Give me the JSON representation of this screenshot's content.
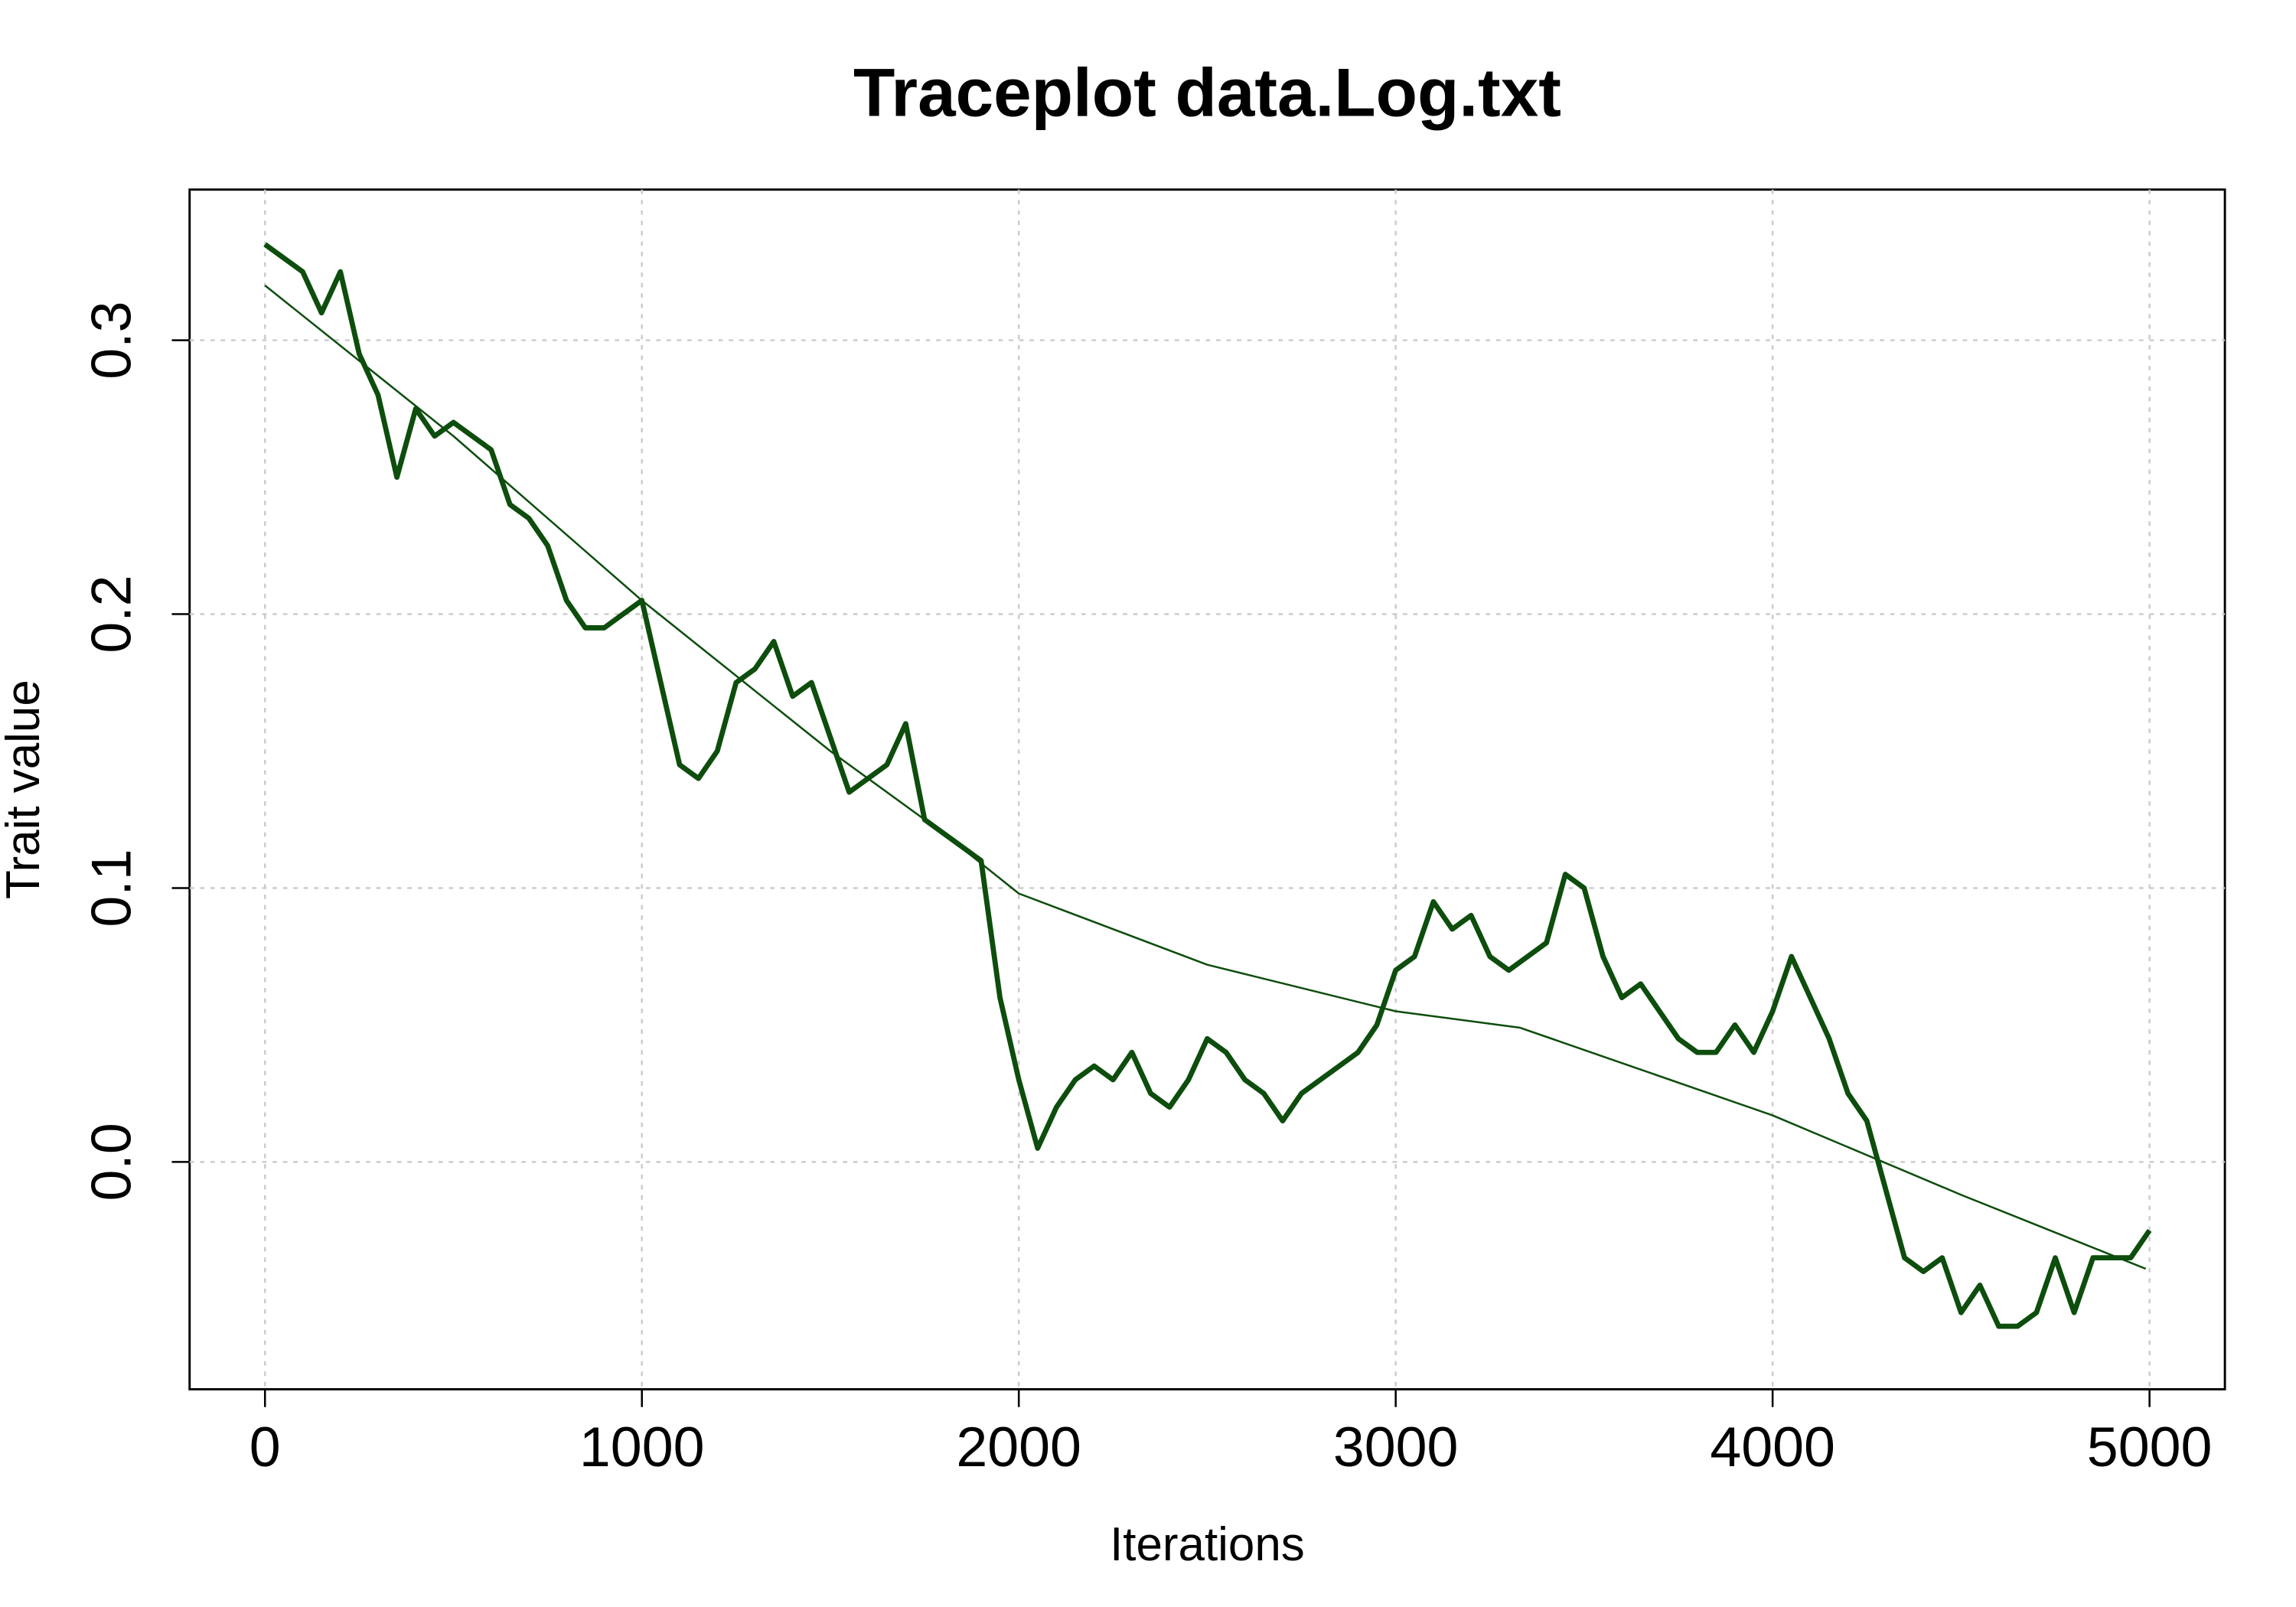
{
  "chart_data": {
    "type": "line",
    "title": "Traceplot data.Log.txt",
    "xlabel": "Iterations",
    "ylabel": "Trait value",
    "xlim": [
      -200,
      5200
    ],
    "ylim": [
      -0.083,
      0.355
    ],
    "xticks": [
      0,
      1000,
      2000,
      3000,
      4000,
      5000
    ],
    "yticks": [
      {
        "value": 0,
        "label": "0.0"
      },
      0.1,
      0.2,
      0.3
    ],
    "grid": true,
    "series": [
      {
        "color": "#0d4d0d",
        "width": 3.5,
        "x": [
          0,
          50,
          100,
          150,
          200,
          250,
          300,
          350,
          400,
          450,
          500,
          550,
          600,
          650,
          700,
          750,
          800,
          850,
          900,
          950,
          1000,
          1050,
          1100,
          1150,
          1200,
          1250,
          1300,
          1350,
          1400,
          1450,
          1500,
          1550,
          1600,
          1650,
          1700,
          1750,
          1800,
          1850,
          1900,
          1950,
          2000,
          2050,
          2100,
          2150,
          2200,
          2250,
          2300,
          2350,
          2400,
          2450,
          2500,
          2550,
          2600,
          2650,
          2700,
          2750,
          2800,
          2850,
          2900,
          2950,
          3000,
          3050,
          3100,
          3150,
          3200,
          3250,
          3300,
          3350,
          3400,
          3450,
          3500,
          3550,
          3600,
          3650,
          3700,
          3750,
          3800,
          3850,
          3900,
          3950,
          4000,
          4050,
          4100,
          4150,
          4200,
          4250,
          4300,
          4350,
          4400,
          4450,
          4500,
          4550,
          4600,
          4650,
          4700,
          4750,
          4800,
          4850,
          4900,
          4950,
          5000
        ],
        "values": [
          0.335,
          0.33,
          0.325,
          0.31,
          0.325,
          0.295,
          0.28,
          0.25,
          0.275,
          0.265,
          0.27,
          0.265,
          0.26,
          0.24,
          0.235,
          0.225,
          0.205,
          0.195,
          0.195,
          0.2,
          0.205,
          0.175,
          0.145,
          0.14,
          0.15,
          0.175,
          0.18,
          0.19,
          0.17,
          0.175,
          0.155,
          0.135,
          0.14,
          0.145,
          0.16,
          0.125,
          0.12,
          0.115,
          0.11,
          0.06,
          0.03,
          0.005,
          0.02,
          0.03,
          0.035,
          0.03,
          0.04,
          0.025,
          0.02,
          0.03,
          0.045,
          0.04,
          0.03,
          0.025,
          0.015,
          0.025,
          0.03,
          0.035,
          0.04,
          0.05,
          0.07,
          0.075,
          0.095,
          0.085,
          0.09,
          0.075,
          0.07,
          0.075,
          0.08,
          0.105,
          0.1,
          0.075,
          0.06,
          0.065,
          0.055,
          0.045,
          0.04,
          0.04,
          0.05,
          0.04,
          0.055,
          0.075,
          0.06,
          0.045,
          0.025,
          0.015,
          -0.01,
          -0.035,
          -0.04,
          -0.035,
          -0.055,
          -0.045,
          -0.06,
          -0.06,
          -0.055,
          -0.035,
          -0.055,
          -0.035,
          -0.035,
          -0.035,
          -0.025
        ]
      },
      {
        "color": "#0d4d0d",
        "width": 1.3,
        "x": [
          0,
          500,
          1000,
          1500,
          1800,
          2000,
          2500,
          3000,
          3330,
          4000,
          4500,
          4990
        ],
        "values": [
          0.32,
          0.265,
          0.205,
          0.15,
          0.12,
          0.098,
          0.072,
          0.055,
          0.049,
          0.017,
          -0.012,
          -0.039
        ]
      }
    ]
  }
}
